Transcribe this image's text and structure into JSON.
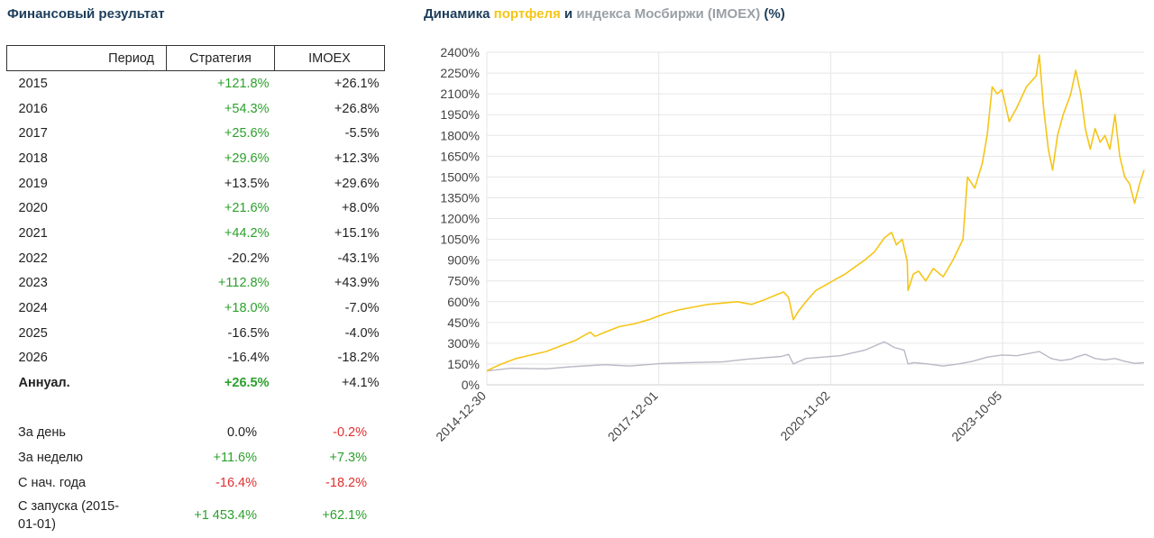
{
  "finance": {
    "title": "Финансовый результат",
    "headers": {
      "period": "Период",
      "strategy": "Стратегия",
      "index": "IMOEX"
    },
    "rows": [
      {
        "period": "2015",
        "strategy": "+121.8%",
        "index": "+26.1%"
      },
      {
        "period": "2016",
        "strategy": "+54.3%",
        "index": "+26.8%"
      },
      {
        "period": "2017",
        "strategy": "+25.6%",
        "index": "-5.5%"
      },
      {
        "period": "2018",
        "strategy": "+29.6%",
        "index": "+12.3%"
      },
      {
        "period": "2019",
        "strategy": "+13.5%",
        "index": "+29.6%"
      },
      {
        "period": "2020",
        "strategy": "+21.6%",
        "index": "+8.0%"
      },
      {
        "period": "2021",
        "strategy": "+44.2%",
        "index": "+15.1%"
      },
      {
        "period": "2022",
        "strategy": "-20.2%",
        "index": "-43.1%"
      },
      {
        "period": "2023",
        "strategy": "+112.8%",
        "index": "+43.9%"
      },
      {
        "period": "2024",
        "strategy": "+18.0%",
        "index": "-7.0%"
      },
      {
        "period": "2025",
        "strategy": "-16.5%",
        "index": "-4.0%"
      },
      {
        "period": "2026",
        "strategy": "-16.4%",
        "index": "-18.2%"
      },
      {
        "period": "Аннуал.",
        "strategy": "+26.5%",
        "index": "+4.1%"
      }
    ],
    "stats": [
      {
        "label": "За день",
        "strategy": "0.0%",
        "index": "-0.2%"
      },
      {
        "label": "За неделю",
        "strategy": "+11.6%",
        "index": "+7.3%"
      },
      {
        "label": "С нач. года",
        "strategy": "-16.4%",
        "index": "-18.2%"
      },
      {
        "label": "С запуска (2015-01-01)",
        "strategy": "+1 453.4%",
        "index": "+62.1%"
      }
    ]
  },
  "chart_title": {
    "part1": "Динамика ",
    "part2": "портфеля",
    "part3": " и ",
    "part4": "индекса Мосбиржи (IMOEX)",
    "part5": " (%)"
  },
  "colors": {
    "portfolio": "#f5c518",
    "index": "#b9b9c7",
    "positive": "#2ca02c",
    "negative": "#e03030",
    "title": "#1d3d5a"
  },
  "chart_data": {
    "type": "line",
    "title": "Динамика портфеля и индекса Мосбиржи (IMOEX) (%)",
    "xlabel": "",
    "ylabel": "",
    "x_range": [
      "2014-12-30",
      "2026-03-01"
    ],
    "ylim": [
      0,
      2400
    ],
    "yticks": [
      0,
      150,
      300,
      450,
      600,
      750,
      900,
      1050,
      1200,
      1350,
      1500,
      1650,
      1800,
      1950,
      2100,
      2250,
      2400
    ],
    "xticks": [
      "2014-12-30",
      "2017-12-01",
      "2020-11-02",
      "2023-10-05"
    ],
    "grid": true,
    "series": [
      {
        "name": "портфеля",
        "points": [
          [
            "2014-12-30",
            100
          ],
          [
            "2015-02-01",
            120
          ],
          [
            "2015-04-01",
            150
          ],
          [
            "2015-07-01",
            190
          ],
          [
            "2015-10-01",
            215
          ],
          [
            "2016-01-01",
            240
          ],
          [
            "2016-04-01",
            280
          ],
          [
            "2016-07-01",
            320
          ],
          [
            "2016-09-01",
            360
          ],
          [
            "2016-10-01",
            380
          ],
          [
            "2016-11-01",
            350
          ],
          [
            "2017-01-01",
            380
          ],
          [
            "2017-04-01",
            420
          ],
          [
            "2017-07-01",
            440
          ],
          [
            "2017-10-01",
            470
          ],
          [
            "2018-01-01",
            510
          ],
          [
            "2018-04-01",
            540
          ],
          [
            "2018-07-01",
            560
          ],
          [
            "2018-10-01",
            580
          ],
          [
            "2019-01-01",
            590
          ],
          [
            "2019-04-01",
            600
          ],
          [
            "2019-07-01",
            580
          ],
          [
            "2019-10-01",
            620
          ],
          [
            "2019-12-01",
            650
          ],
          [
            "2020-01-15",
            670
          ],
          [
            "2020-02-15",
            630
          ],
          [
            "2020-03-15",
            470
          ],
          [
            "2020-04-15",
            530
          ],
          [
            "2020-06-01",
            600
          ],
          [
            "2020-08-01",
            680
          ],
          [
            "2020-10-01",
            720
          ],
          [
            "2020-12-01",
            760
          ],
          [
            "2021-02-01",
            800
          ],
          [
            "2021-04-01",
            850
          ],
          [
            "2021-06-01",
            900
          ],
          [
            "2021-08-01",
            960
          ],
          [
            "2021-10-01",
            1060
          ],
          [
            "2021-11-15",
            1100
          ],
          [
            "2021-12-15",
            1010
          ],
          [
            "2022-01-20",
            1050
          ],
          [
            "2022-02-20",
            890
          ],
          [
            "2022-02-25",
            680
          ],
          [
            "2022-03-30",
            800
          ],
          [
            "2022-05-01",
            820
          ],
          [
            "2022-06-15",
            750
          ],
          [
            "2022-08-01",
            840
          ],
          [
            "2022-10-01",
            780
          ],
          [
            "2022-12-01",
            900
          ],
          [
            "2023-02-01",
            1050
          ],
          [
            "2023-03-01",
            1500
          ],
          [
            "2023-04-15",
            1420
          ],
          [
            "2023-06-01",
            1600
          ],
          [
            "2023-07-01",
            1800
          ],
          [
            "2023-08-01",
            2150
          ],
          [
            "2023-09-01",
            2100
          ],
          [
            "2023-10-01",
            2130
          ],
          [
            "2023-11-15",
            1900
          ],
          [
            "2024-01-01",
            2000
          ],
          [
            "2024-03-01",
            2150
          ],
          [
            "2024-05-01",
            2230
          ],
          [
            "2024-05-20",
            2380
          ],
          [
            "2024-06-15",
            2000
          ],
          [
            "2024-07-15",
            1700
          ],
          [
            "2024-08-10",
            1550
          ],
          [
            "2024-09-10",
            1800
          ],
          [
            "2024-10-15",
            1950
          ],
          [
            "2024-12-01",
            2100
          ],
          [
            "2025-01-01",
            2270
          ],
          [
            "2025-02-01",
            2100
          ],
          [
            "2025-03-01",
            1850
          ],
          [
            "2025-04-01",
            1700
          ],
          [
            "2025-05-01",
            1850
          ],
          [
            "2025-06-01",
            1750
          ],
          [
            "2025-07-01",
            1800
          ],
          [
            "2025-08-01",
            1700
          ],
          [
            "2025-09-01",
            1950
          ],
          [
            "2025-10-01",
            1650
          ],
          [
            "2025-11-01",
            1500
          ],
          [
            "2025-12-01",
            1450
          ],
          [
            "2026-01-01",
            1310
          ],
          [
            "2026-02-01",
            1450
          ],
          [
            "2026-03-01",
            1550
          ]
        ]
      },
      {
        "name": "индекса Мосбиржи (IMOEX)",
        "points": [
          [
            "2014-12-30",
            100
          ],
          [
            "2015-06-01",
            120
          ],
          [
            "2016-01-01",
            115
          ],
          [
            "2016-06-01",
            130
          ],
          [
            "2017-01-01",
            145
          ],
          [
            "2017-06-01",
            135
          ],
          [
            "2018-01-01",
            155
          ],
          [
            "2018-06-01",
            160
          ],
          [
            "2019-01-01",
            165
          ],
          [
            "2019-06-01",
            185
          ],
          [
            "2020-01-01",
            205
          ],
          [
            "2020-02-15",
            220
          ],
          [
            "2020-03-15",
            150
          ],
          [
            "2020-06-01",
            190
          ],
          [
            "2021-01-01",
            210
          ],
          [
            "2021-06-01",
            250
          ],
          [
            "2021-10-01",
            310
          ],
          [
            "2021-12-01",
            270
          ],
          [
            "2022-02-01",
            250
          ],
          [
            "2022-02-25",
            150
          ],
          [
            "2022-04-01",
            160
          ],
          [
            "2022-07-01",
            150
          ],
          [
            "2022-10-01",
            135
          ],
          [
            "2023-01-01",
            150
          ],
          [
            "2023-04-01",
            170
          ],
          [
            "2023-07-01",
            200
          ],
          [
            "2023-10-01",
            215
          ],
          [
            "2024-01-01",
            210
          ],
          [
            "2024-05-20",
            240
          ],
          [
            "2024-08-01",
            190
          ],
          [
            "2024-10-01",
            175
          ],
          [
            "2024-12-01",
            185
          ],
          [
            "2025-01-01",
            200
          ],
          [
            "2025-03-01",
            220
          ],
          [
            "2025-05-01",
            190
          ],
          [
            "2025-07-01",
            180
          ],
          [
            "2025-09-01",
            190
          ],
          [
            "2025-11-01",
            170
          ],
          [
            "2026-01-01",
            155
          ],
          [
            "2026-03-01",
            160
          ]
        ]
      }
    ]
  }
}
